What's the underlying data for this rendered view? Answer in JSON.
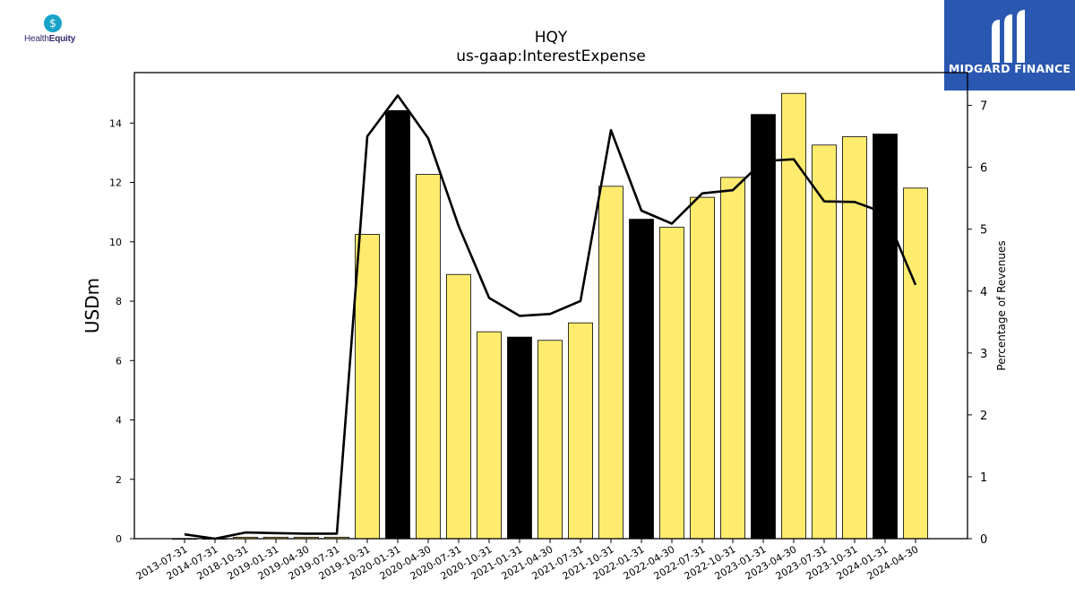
{
  "logos": {
    "left": {
      "brand": "HealthEquity",
      "brand_part1": "Health",
      "brand_part2": "Equity",
      "icon": "dollar-badge-icon",
      "color": "#3b2a72",
      "accent": "#1aa3c8"
    },
    "right": {
      "brand": "MIDGARD FINANCE",
      "icon": "midgard-m-icon",
      "background": "#2a57b0"
    }
  },
  "chart_data": {
    "type": "bar",
    "title": "HQY",
    "subtitle": "us-gaap:InterestExpense",
    "ylabel": "USDm",
    "y2label": "Percentage of Revenues",
    "ylim": [
      0,
      15.7
    ],
    "y2lim": [
      0,
      7.53
    ],
    "yticks": [
      0,
      2,
      4,
      6,
      8,
      10,
      12,
      14
    ],
    "y2ticks": [
      0,
      1,
      2,
      3,
      4,
      5,
      6,
      7
    ],
    "grid": false,
    "categories": [
      "2013-07-31",
      "2014-07-31",
      "2018-10-31",
      "2019-01-31",
      "2019-04-30",
      "2019-07-31",
      "2019-10-31",
      "2020-01-31",
      "2020-04-30",
      "2020-07-31",
      "2020-10-31",
      "2021-01-31",
      "2021-04-30",
      "2021-07-31",
      "2021-10-31",
      "2022-01-31",
      "2022-04-30",
      "2022-07-31",
      "2022-10-31",
      "2023-01-31",
      "2023-04-30",
      "2023-07-31",
      "2023-10-31",
      "2024-01-31",
      "2024-04-30"
    ],
    "series": [
      {
        "type": "bar",
        "axis": "left",
        "values": [
          0.0,
          0.0,
          0.05,
          0.05,
          0.05,
          0.05,
          10.25,
          14.42,
          12.27,
          8.9,
          6.97,
          6.79,
          6.68,
          7.27,
          11.87,
          10.76,
          10.49,
          11.5,
          12.17,
          14.29,
          15.0,
          13.26,
          13.54,
          13.63,
          11.81
        ],
        "colors": [
          "#ffec6e",
          "#ffec6e",
          "#ffec6e",
          "#ffec6e",
          "#ffec6e",
          "#ffec6e",
          "#ffec6e",
          "#000000",
          "#ffec6e",
          "#ffec6e",
          "#ffec6e",
          "#000000",
          "#ffec6e",
          "#ffec6e",
          "#ffec6e",
          "#000000",
          "#ffec6e",
          "#ffec6e",
          "#ffec6e",
          "#000000",
          "#ffec6e",
          "#ffec6e",
          "#ffec6e",
          "#000000",
          "#ffec6e"
        ]
      },
      {
        "type": "line",
        "axis": "right",
        "color": "#000000",
        "values": [
          0.07,
          0.0,
          0.1,
          0.09,
          0.08,
          0.08,
          6.5,
          7.16,
          6.47,
          5.05,
          3.89,
          3.6,
          3.63,
          3.84,
          6.6,
          5.3,
          5.09,
          5.58,
          5.63,
          6.1,
          6.13,
          5.45,
          5.44,
          5.26,
          4.1
        ]
      }
    ]
  }
}
